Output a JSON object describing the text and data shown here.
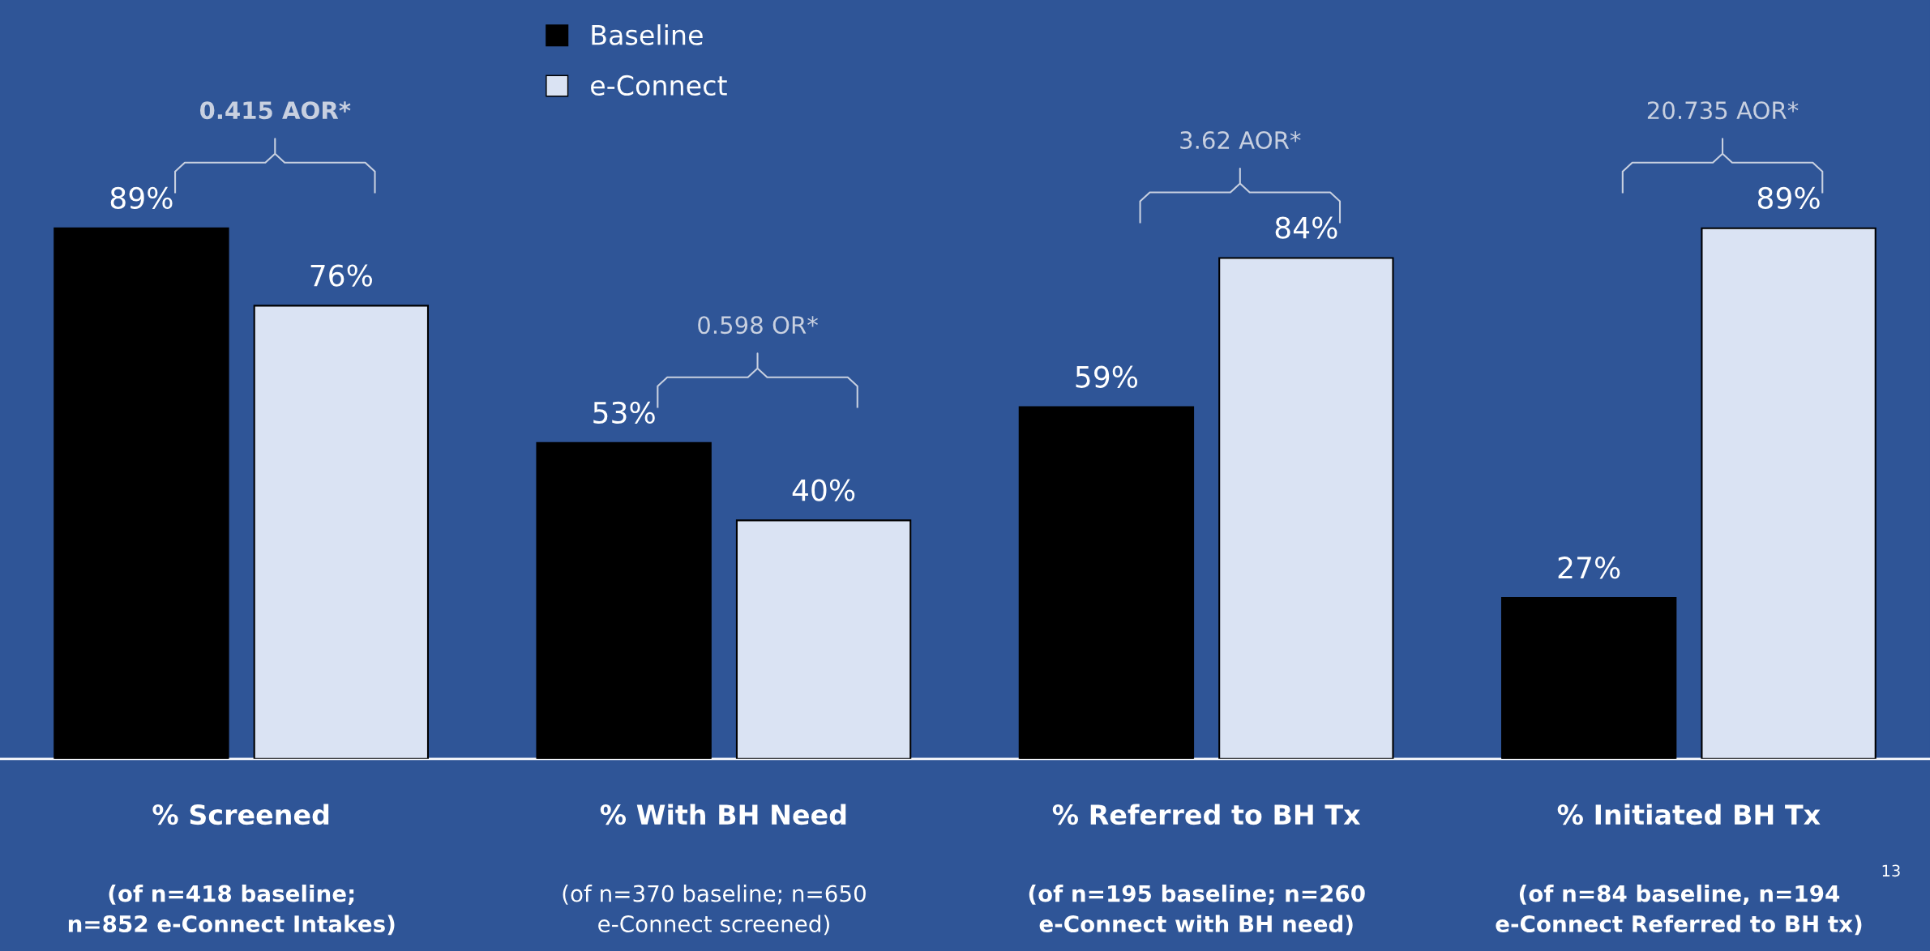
{
  "chart_data": {
    "type": "bar",
    "categories": [
      "% Screened",
      "% With BH Need",
      "% Referred to BH Tx",
      "% Initiated BH Tx"
    ],
    "series": [
      {
        "name": "Baseline",
        "color": "#000000",
        "values": [
          89,
          53,
          59,
          27
        ],
        "value_labels": [
          "89%",
          "53%",
          "59%",
          "27%"
        ]
      },
      {
        "name": "e-Connect",
        "color": "#dae3f3",
        "values": [
          76,
          40,
          84,
          89
        ],
        "value_labels": [
          "76%",
          "40%",
          "84%",
          "89%"
        ]
      }
    ],
    "tick_labels": "x",
    "legend": "top",
    "grid": false,
    "annotations": [
      "0.415 AOR*",
      "0.598 OR*",
      "3.62 AOR*",
      "20.735 AOR*",
      "(of n=418 baseline;\nn=852 e-Connect Intakes)",
      "(of n=370 baseline; n=650\ne-Connect screened)",
      "(of n=195 baseline; n=260\ne-Connect with BH need)",
      "(of n=84 baseline, n=194\ne-Connect Referred to BH tx)",
      "13"
    ]
  }
}
